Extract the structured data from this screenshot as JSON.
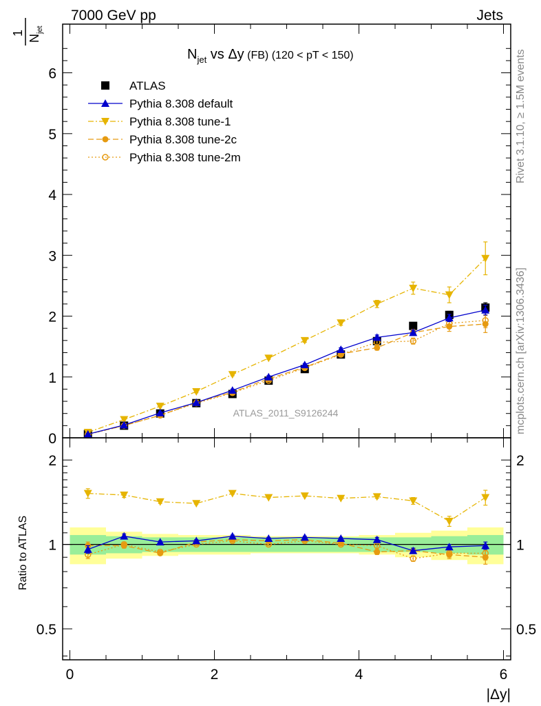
{
  "header": {
    "left": "7000 GeV pp",
    "right": "Jets"
  },
  "side_texts": {
    "rivet": "Rivet 3.1.10, ≥ 1.5M events",
    "mcplots": "mcplots.cern.ch [arXiv:1306.3436]"
  },
  "chart_data": [
    {
      "type": "scatter",
      "title": {
        "n": "N",
        "n_sub": "jet",
        "vs": "vs",
        "dy": "Δy",
        "fb": "(FB)",
        "range": "(120 < pT < 150)"
      },
      "ylabel": {
        "top": "1",
        "bottom": "N",
        "bottom_sub": "jet"
      },
      "xlabel": "",
      "xlim": [
        -0.1,
        6.1
      ],
      "ylim": [
        0,
        6.8
      ],
      "xticks": [
        0,
        2,
        4,
        6
      ],
      "yticks": [
        0,
        1,
        2,
        3,
        4,
        5,
        6
      ],
      "watermark": "ATLAS_2011_S9126244",
      "legend_position": "top-left",
      "x": [
        0.25,
        0.75,
        1.25,
        1.75,
        2.25,
        2.75,
        3.25,
        3.75,
        4.25,
        4.75,
        5.25,
        5.75
      ],
      "series": [
        {
          "name": "ATLAS",
          "marker": "square",
          "color": "#000000",
          "line": "none",
          "values": [
            0.06,
            0.2,
            0.4,
            0.57,
            0.72,
            0.94,
            1.13,
            1.37,
            1.59,
            1.84,
            2.02,
            2.14
          ],
          "errors": [
            0.01,
            0.01,
            0.01,
            0.01,
            0.02,
            0.02,
            0.03,
            0.03,
            0.04,
            0.05,
            0.06,
            0.08
          ]
        },
        {
          "name": "Pythia 8.308 default",
          "marker": "triangle-up",
          "color": "#0000cc",
          "line": "solid",
          "values": [
            0.06,
            0.21,
            0.41,
            0.58,
            0.78,
            1.0,
            1.2,
            1.45,
            1.65,
            1.73,
            1.97,
            2.1
          ],
          "errors": [
            0.01,
            0.01,
            0.01,
            0.01,
            0.02,
            0.02,
            0.02,
            0.03,
            0.04,
            0.04,
            0.06,
            0.08
          ]
        },
        {
          "name": "Pythia 8.308 tune-1",
          "marker": "triangle-down",
          "color": "#e6b400",
          "line": "dashdot",
          "values": [
            0.09,
            0.3,
            0.52,
            0.76,
            1.04,
            1.31,
            1.6,
            1.89,
            2.2,
            2.46,
            2.35,
            2.95
          ],
          "errors": [
            0.01,
            0.01,
            0.01,
            0.02,
            0.02,
            0.02,
            0.03,
            0.04,
            0.06,
            0.1,
            0.13,
            0.27
          ]
        },
        {
          "name": "Pythia 8.308 tune-2c",
          "marker": "circle",
          "color": "#e69a10",
          "line": "dashed",
          "values": [
            0.06,
            0.2,
            0.37,
            0.58,
            0.75,
            0.97,
            1.16,
            1.38,
            1.48,
            1.73,
            1.83,
            1.87
          ],
          "errors": [
            0.01,
            0.01,
            0.01,
            0.01,
            0.02,
            0.02,
            0.02,
            0.03,
            0.04,
            0.05,
            0.08,
            0.14
          ]
        },
        {
          "name": "Pythia 8.308 tune-2m",
          "marker": "circle-open",
          "color": "#e69a10",
          "line": "dotted",
          "values": [
            0.055,
            0.2,
            0.37,
            0.57,
            0.74,
            0.94,
            1.15,
            1.37,
            1.57,
            1.59,
            1.88,
            1.93
          ],
          "errors": [
            0.01,
            0.01,
            0.01,
            0.01,
            0.02,
            0.02,
            0.02,
            0.03,
            0.04,
            0.05,
            0.07,
            0.12
          ]
        }
      ]
    },
    {
      "type": "scatter",
      "title": "",
      "ylabel": "Ratio to ATLAS",
      "xlabel": "|Δy|",
      "xlim": [
        -0.1,
        6.1
      ],
      "ylim": [
        0.3877,
        2.4
      ],
      "yscale": "log",
      "xticks": [
        0,
        2,
        4,
        6
      ],
      "xtick_labels": [
        "0",
        "2",
        "4",
        "6"
      ],
      "yticks": [
        0.5,
        1,
        2
      ],
      "ytick_labels": [
        "0.5",
        "1",
        "2"
      ],
      "reference_line": 1,
      "bands": {
        "x_edges": [
          0.0,
          0.5,
          1.0,
          1.5,
          2.0,
          2.5,
          3.0,
          3.5,
          4.0,
          4.5,
          5.0,
          5.5,
          6.0
        ],
        "stat": [
          0.08,
          0.07,
          0.06,
          0.06,
          0.06,
          0.06,
          0.06,
          0.06,
          0.06,
          0.06,
          0.07,
          0.08
        ],
        "total": [
          0.15,
          0.11,
          0.09,
          0.08,
          0.08,
          0.07,
          0.07,
          0.07,
          0.08,
          0.1,
          0.12,
          0.15
        ],
        "stat_color": "#99ee99",
        "total_color": "#ffff99"
      },
      "series": [
        {
          "name": "Pythia 8.308 default",
          "marker": "triangle-up",
          "color": "#0000cc",
          "line": "solid",
          "values": [
            0.96,
            1.07,
            1.02,
            1.03,
            1.07,
            1.05,
            1.06,
            1.05,
            1.04,
            0.95,
            0.98,
            0.99
          ],
          "errors": [
            0.03,
            0.02,
            0.01,
            0.01,
            0.01,
            0.01,
            0.01,
            0.01,
            0.02,
            0.02,
            0.02,
            0.03
          ]
        },
        {
          "name": "Pythia 8.308 tune-1",
          "marker": "triangle-down",
          "color": "#e6b400",
          "line": "dashdot",
          "values": [
            1.52,
            1.5,
            1.42,
            1.4,
            1.52,
            1.47,
            1.49,
            1.46,
            1.48,
            1.43,
            1.21,
            1.47
          ],
          "errors": [
            0.06,
            0.03,
            0.02,
            0.01,
            0.01,
            0.01,
            0.01,
            0.01,
            0.02,
            0.04,
            0.05,
            0.09
          ]
        },
        {
          "name": "Pythia 8.308 tune-2c",
          "marker": "circle",
          "color": "#e69a10",
          "line": "dashed",
          "values": [
            0.99,
            0.99,
            0.93,
            1.02,
            1.04,
            1.03,
            1.04,
            1.01,
            0.94,
            0.95,
            0.92,
            0.9
          ],
          "errors": [
            0.03,
            0.02,
            0.01,
            0.01,
            0.01,
            0.01,
            0.01,
            0.01,
            0.02,
            0.02,
            0.03,
            0.05
          ]
        },
        {
          "name": "Pythia 8.308 tune-2m",
          "marker": "circle-open",
          "color": "#e69a10",
          "line": "dotted",
          "values": [
            0.92,
            1.0,
            0.94,
            1.0,
            1.03,
            1.0,
            1.03,
            1.0,
            0.99,
            0.89,
            0.93,
            0.93
          ],
          "errors": [
            0.03,
            0.02,
            0.01,
            0.01,
            0.01,
            0.01,
            0.01,
            0.01,
            0.02,
            0.02,
            0.03,
            0.05
          ]
        }
      ]
    }
  ]
}
